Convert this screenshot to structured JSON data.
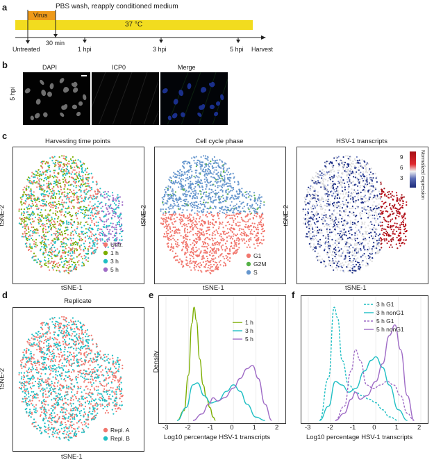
{
  "panels": {
    "a": "a",
    "b": "b",
    "c": "c",
    "d": "d",
    "e": "e",
    "f": "f"
  },
  "timeline": {
    "virus": "Virus",
    "wash": "PBS wash, reapply conditioned medium",
    "temp": "37 °C",
    "ticks": [
      "Untreated",
      "30 min",
      "1 hpi",
      "3 hpi",
      "5 hpi"
    ],
    "harvest": "Harvest",
    "colors": {
      "bar": "#f2dc1f",
      "virus": "#ee9a19"
    }
  },
  "microscopy": {
    "rowlabel": "5 hpi",
    "titles": [
      "DAPI",
      "ICP0",
      "Merge"
    ]
  },
  "tsne": {
    "xlabel": "tSNE-1",
    "ylabel": "tSNE-2",
    "c1": {
      "title": "Harvesting time points",
      "legend": [
        {
          "label": "Untr.",
          "color": "#f1766d"
        },
        {
          "label": "1 h",
          "color": "#7cae00"
        },
        {
          "label": "3 h",
          "color": "#1fbfc4"
        },
        {
          "label": "5 h",
          "color": "#9f6bc6"
        }
      ]
    },
    "c2": {
      "title": "Cell cycle phase",
      "legend": [
        {
          "label": "G1",
          "color": "#f1766d"
        },
        {
          "label": "G2M",
          "color": "#55b147"
        },
        {
          "label": "S",
          "color": "#6495cd"
        }
      ]
    },
    "c3": {
      "title": "HSV-1 transcripts",
      "cbar_label": "Normalized expression",
      "cbar_ticks": [
        "9",
        "6",
        "3"
      ]
    },
    "d": {
      "title": "Replicate",
      "legend": [
        {
          "label": "Repl. A",
          "color": "#f1766d"
        },
        {
          "label": "Repl. B",
          "color": "#1fbfc4"
        }
      ]
    }
  },
  "density_e": {
    "ylabel": "Density",
    "xlabel": "Log10 percentage HSV-1 transcripts",
    "xticks": [
      "-3",
      "-2",
      "-1",
      "0",
      "1",
      "2"
    ],
    "legend": [
      {
        "label": "1 h",
        "color": "#7cae00"
      },
      {
        "label": "3 h",
        "color": "#1fbfc4"
      },
      {
        "label": "5 h",
        "color": "#9f6bc6"
      }
    ]
  },
  "density_f": {
    "xlabel": "Log10 percentage HSV-1 transcripts",
    "xticks": [
      "-3",
      "-2",
      "-1",
      "0",
      "1",
      "2"
    ],
    "legend": [
      {
        "label": "3 h G1",
        "color": "#1fbfc4",
        "dash": true
      },
      {
        "label": "3 h nonG1",
        "color": "#1fbfc4",
        "dash": false
      },
      {
        "label": "5 h G1",
        "color": "#9f6bc6",
        "dash": true
      },
      {
        "label": "5 h nonG1",
        "color": "#9f6bc6",
        "dash": false
      }
    ]
  },
  "chart_data": [
    {
      "type": "area",
      "title": "",
      "xlabel": "Log10 percentage HSV-1 transcripts",
      "ylabel": "Density",
      "xlim": [
        -3,
        2
      ],
      "series": [
        {
          "name": "1 h",
          "x": [
            -2.5,
            -2.2,
            -2.0,
            -1.85,
            -1.75,
            -1.65,
            -1.5,
            -1.35,
            -1.2,
            -1.05,
            -0.9,
            -0.8
          ],
          "y": [
            0.0,
            0.15,
            0.7,
            1.5,
            1.75,
            1.55,
            0.95,
            0.55,
            0.35,
            0.2,
            0.05,
            0.0
          ]
        },
        {
          "name": "3 h",
          "x": [
            -2.5,
            -2.1,
            -1.8,
            -1.6,
            -1.3,
            -1.0,
            -0.7,
            -0.3,
            0.0,
            0.3,
            0.6,
            1.0,
            1.4
          ],
          "y": [
            0.0,
            0.2,
            0.55,
            0.58,
            0.38,
            0.27,
            0.3,
            0.45,
            0.55,
            0.45,
            0.25,
            0.05,
            0.0
          ]
        },
        {
          "name": "5 h",
          "x": [
            -1.8,
            -1.4,
            -1.1,
            -0.9,
            -0.7,
            -0.4,
            0.0,
            0.3,
            0.6,
            0.85,
            1.1,
            1.4,
            1.7
          ],
          "y": [
            0.0,
            0.1,
            0.25,
            0.35,
            0.3,
            0.35,
            0.5,
            0.65,
            0.8,
            0.85,
            0.65,
            0.25,
            0.0
          ]
        }
      ]
    },
    {
      "type": "area",
      "title": "",
      "xlabel": "Log10 percentage HSV-1 transcripts",
      "ylabel": "",
      "xlim": [
        -3,
        2
      ],
      "series": [
        {
          "name": "3 h G1",
          "x": [
            -2.5,
            -2.1,
            -1.85,
            -1.7,
            -1.5,
            -1.2,
            -0.9,
            -0.6,
            -0.3,
            0.0,
            0.3,
            0.6,
            1.0
          ],
          "y": [
            0.0,
            0.6,
            1.6,
            1.45,
            0.85,
            0.5,
            0.4,
            0.35,
            0.3,
            0.25,
            0.15,
            0.05,
            0.0
          ]
        },
        {
          "name": "3 h nonG1",
          "x": [
            -2.5,
            -2.1,
            -1.8,
            -1.5,
            -1.2,
            -0.9,
            -0.5,
            -0.2,
            0.0,
            0.3,
            0.6,
            1.0,
            1.4
          ],
          "y": [
            0.0,
            0.2,
            0.55,
            0.5,
            0.4,
            0.45,
            0.7,
            0.85,
            0.9,
            0.75,
            0.5,
            0.15,
            0.0
          ]
        },
        {
          "name": "5 h G1",
          "x": [
            -1.8,
            -1.4,
            -1.1,
            -0.9,
            -0.7,
            -0.4,
            -0.1,
            0.2,
            0.5,
            0.8,
            1.1,
            1.4,
            1.7
          ],
          "y": [
            0.0,
            0.2,
            0.7,
            1.0,
            0.85,
            0.5,
            0.45,
            0.5,
            0.55,
            0.5,
            0.35,
            0.1,
            0.0
          ]
        },
        {
          "name": "5 h nonG1",
          "x": [
            -1.8,
            -1.4,
            -1.1,
            -0.9,
            -0.7,
            -0.4,
            0.0,
            0.3,
            0.6,
            0.85,
            1.1,
            1.4,
            1.7
          ],
          "y": [
            0.0,
            0.1,
            0.3,
            0.4,
            0.3,
            0.35,
            0.55,
            0.8,
            1.2,
            1.35,
            1.0,
            0.35,
            0.0
          ]
        }
      ]
    }
  ]
}
